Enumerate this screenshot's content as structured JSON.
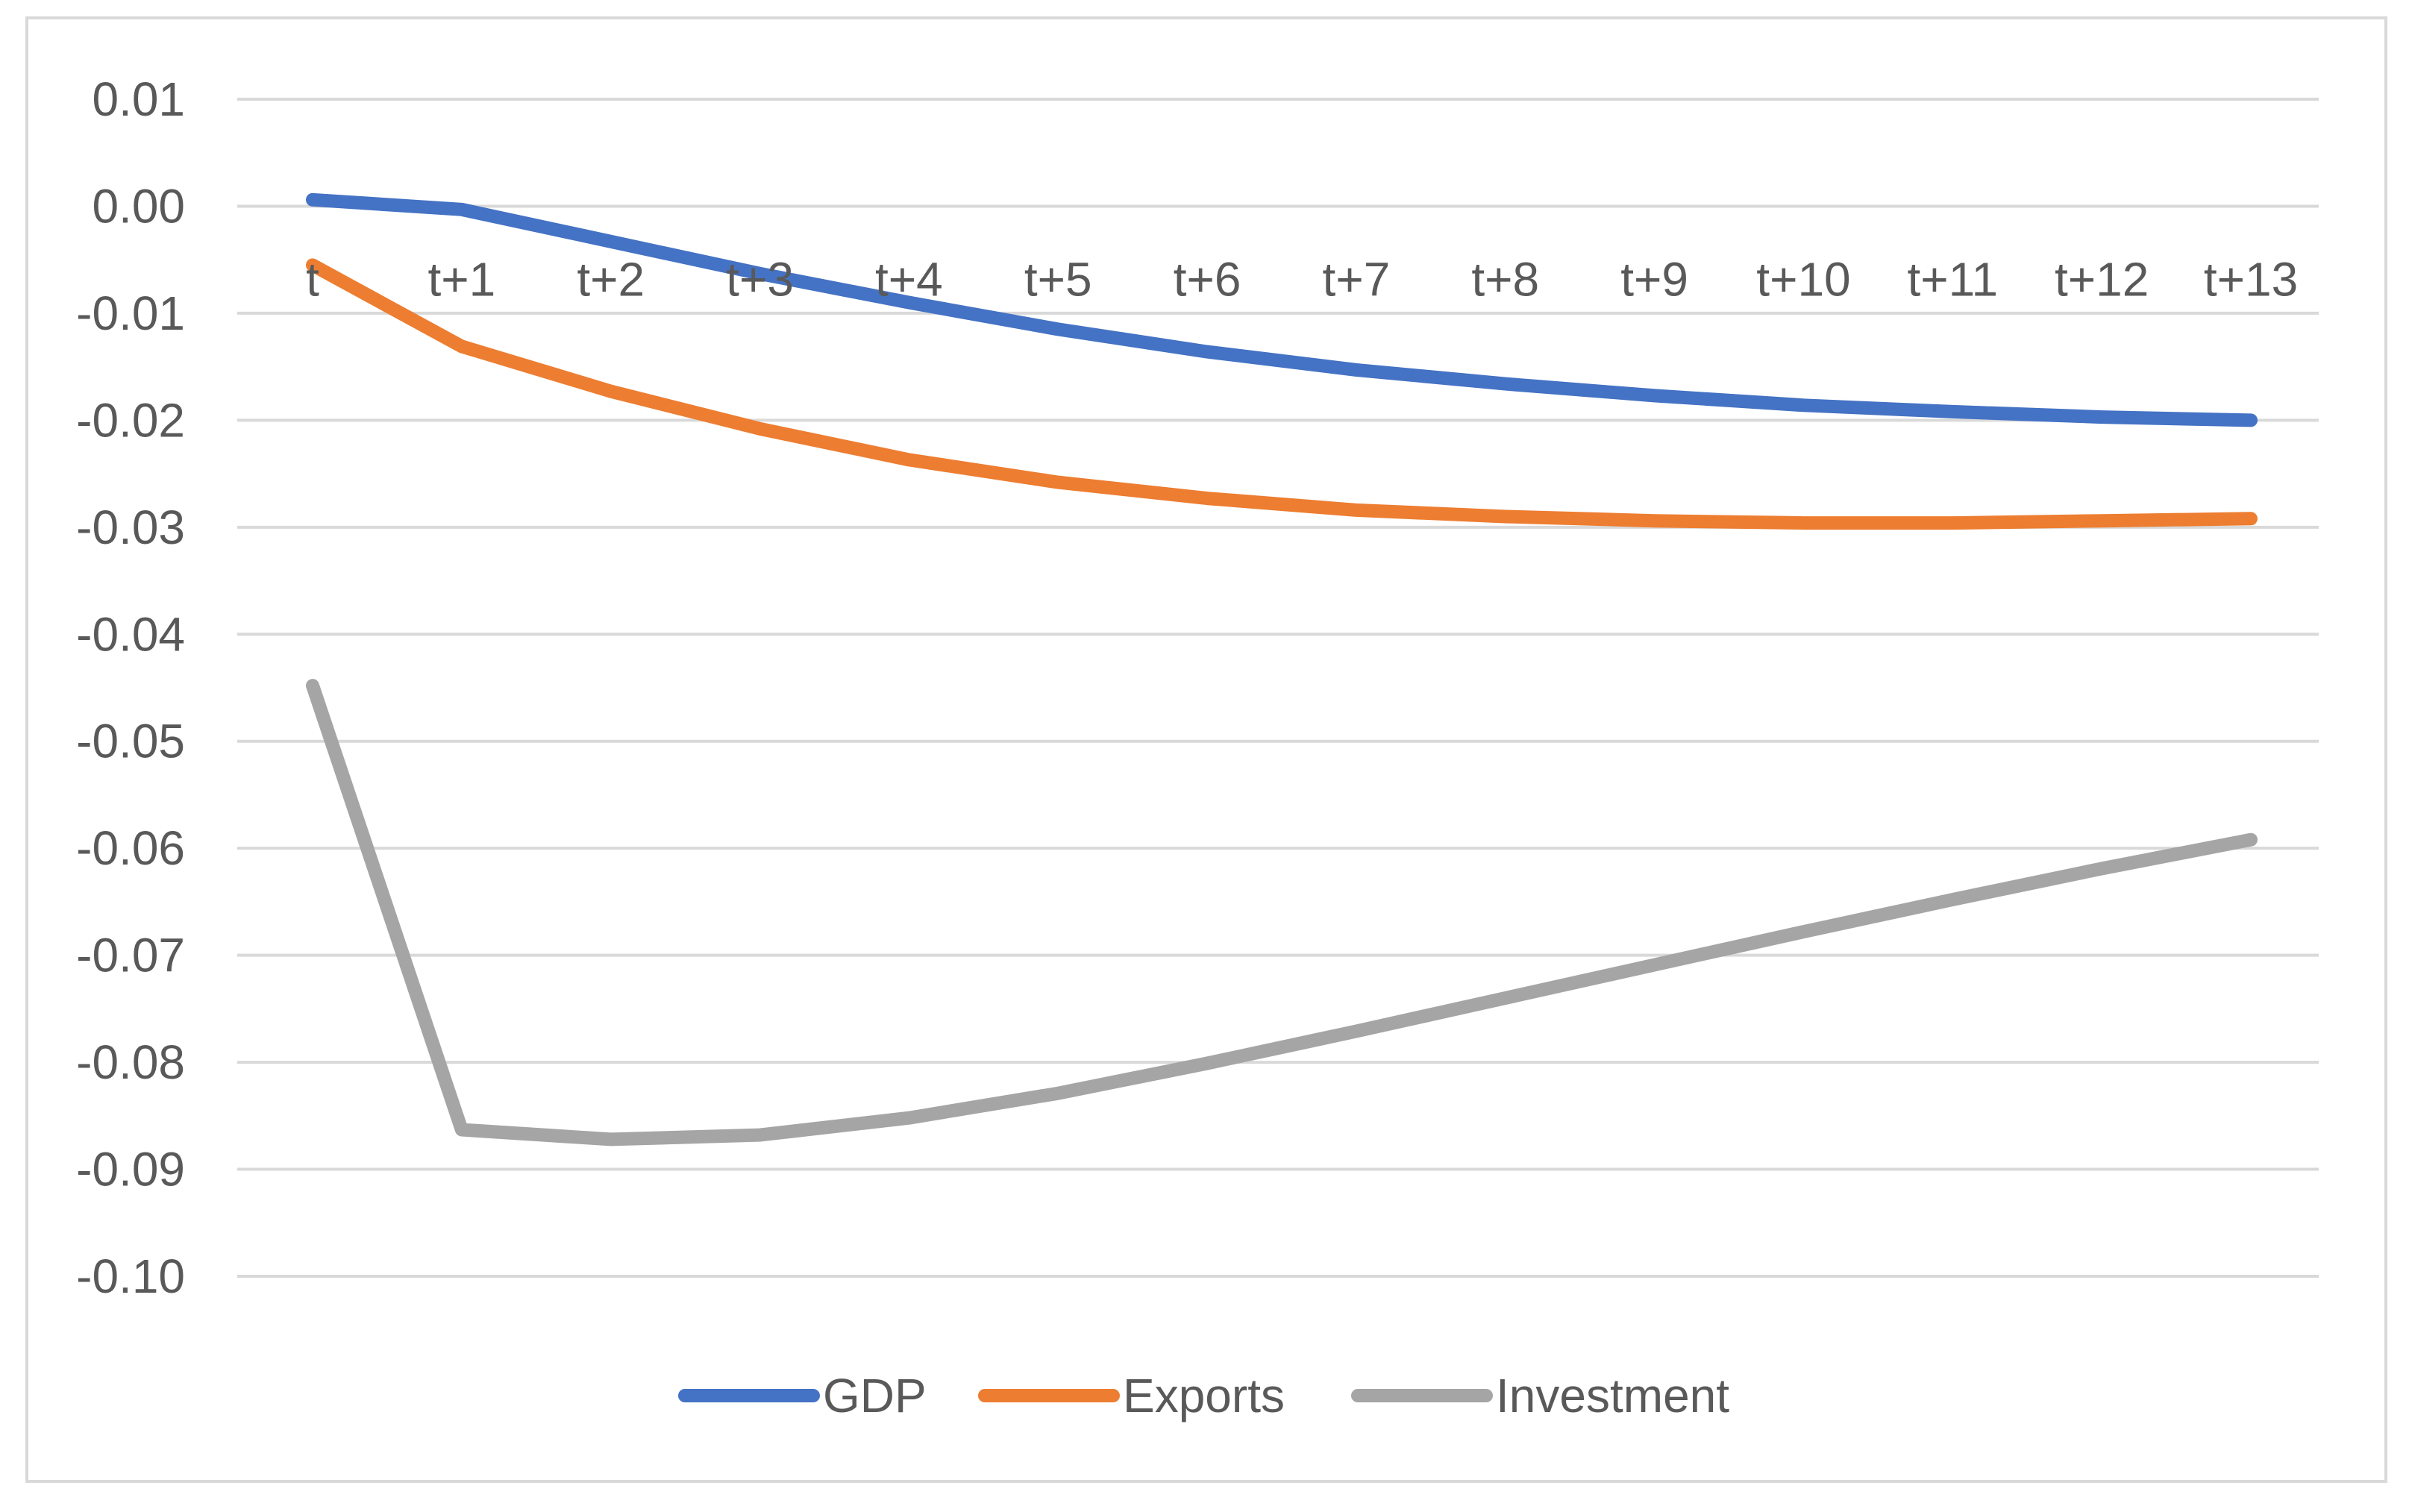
{
  "chart_data": {
    "type": "line",
    "title": "",
    "xlabel": "",
    "ylabel": "",
    "categories": [
      "t",
      "t+1",
      "t+2",
      "t+3",
      "t+4",
      "t+5",
      "t+6",
      "t+7",
      "t+8",
      "t+9",
      "t+10",
      "t+11",
      "t+12",
      "t+13"
    ],
    "ylim": [
      -0.1,
      0.01
    ],
    "yticks": [
      0.01,
      0.0,
      -0.01,
      -0.02,
      -0.03,
      -0.04,
      -0.05,
      -0.06,
      -0.07,
      -0.08,
      -0.09,
      -0.1
    ],
    "ytick_labels": [
      "0.01",
      "0.00",
      "-0.01",
      "-0.02",
      "-0.03",
      "-0.04",
      "-0.05",
      "-0.06",
      "-0.07",
      "-0.08",
      "-0.09",
      "-0.10"
    ],
    "grid": true,
    "legend_position": "bottom",
    "series": [
      {
        "name": "GDP",
        "color": "#4472C4",
        "values": [
          0.0006,
          -0.0003,
          -0.0033,
          -0.0063,
          -0.009,
          -0.0115,
          -0.0136,
          -0.0153,
          -0.0166,
          -0.0177,
          -0.0186,
          -0.0192,
          -0.0197,
          -0.02
        ]
      },
      {
        "name": "Exports",
        "color": "#ED7D31",
        "values": [
          -0.0055,
          -0.0131,
          -0.0173,
          -0.0208,
          -0.0237,
          -0.0258,
          -0.0273,
          -0.0284,
          -0.029,
          -0.0294,
          -0.0296,
          -0.0296,
          -0.0294,
          -0.0292
        ]
      },
      {
        "name": "Investment",
        "color": "#A5A5A5",
        "values": [
          -0.0448,
          -0.0863,
          -0.0872,
          -0.0868,
          -0.0852,
          -0.0829,
          -0.0801,
          -0.0771,
          -0.074,
          -0.0709,
          -0.0678,
          -0.0648,
          -0.0619,
          -0.0592
        ]
      }
    ]
  }
}
